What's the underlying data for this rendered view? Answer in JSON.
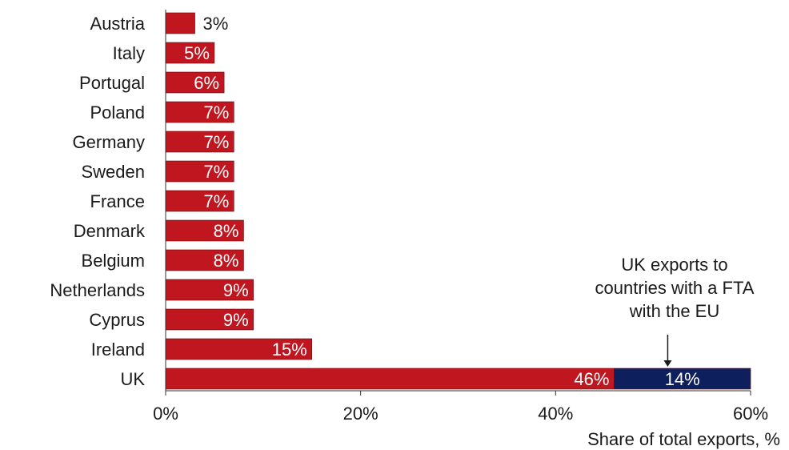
{
  "chart_data": {
    "type": "bar",
    "orientation": "horizontal",
    "stacked": true,
    "categories": [
      "Austria",
      "Italy",
      "Portugal",
      "Poland",
      "Germany",
      "Sweden",
      "France",
      "Denmark",
      "Belgium",
      "Netherlands",
      "Cyprus",
      "Ireland",
      "UK"
    ],
    "series": [
      {
        "color": "#c0161f",
        "values": [
          3,
          5,
          6,
          7,
          7,
          7,
          7,
          8,
          8,
          9,
          9,
          15,
          46
        ],
        "labels": [
          "3%",
          "5%",
          "6%",
          "7%",
          "7%",
          "7%",
          "7%",
          "8%",
          "8%",
          "9%",
          "9%",
          "15%",
          "46%"
        ]
      },
      {
        "color": "#0d1f5c",
        "values": [
          null,
          null,
          null,
          null,
          null,
          null,
          null,
          null,
          null,
          null,
          null,
          null,
          14
        ],
        "labels": [
          "",
          "",
          "",
          "",
          "",
          "",
          "",
          "",
          "",
          "",
          "",
          "",
          "14%"
        ]
      }
    ],
    "xlim": [
      0,
      60
    ],
    "x_ticks": [
      0,
      20,
      40,
      60
    ],
    "x_tick_labels": [
      "0%",
      "20%",
      "40%",
      "60%"
    ],
    "xlabel": "Share of total exports, %",
    "title": "",
    "ylabel": "",
    "legend": "none",
    "grid": false,
    "annotation": {
      "lines": [
        "UK exports to",
        "countries with a FTA",
        "with the EU"
      ],
      "points_to_category": "UK",
      "points_to_x": 51.5
    }
  }
}
